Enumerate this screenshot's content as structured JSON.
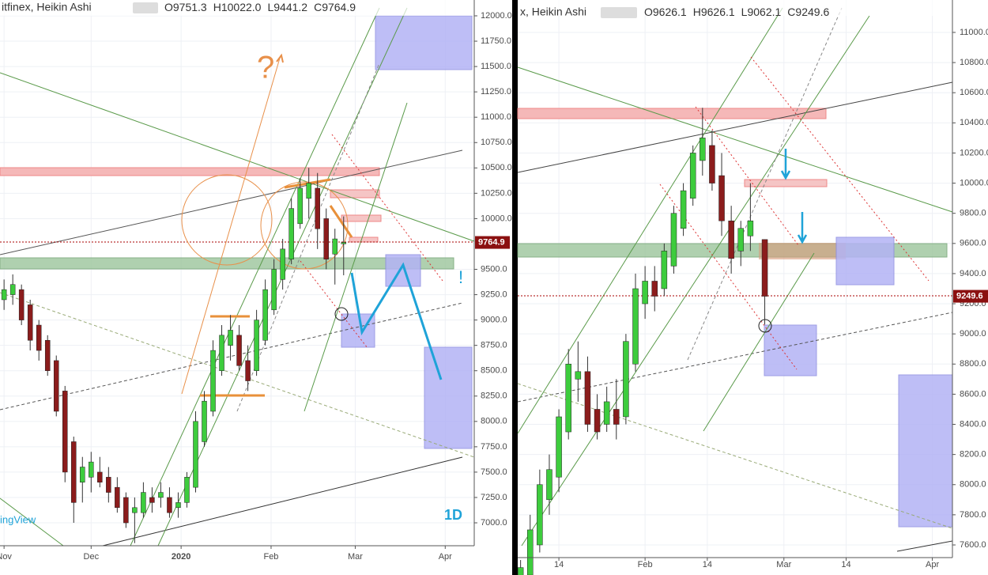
{
  "chart_data": [
    {
      "type": "candlestick",
      "title": "itfinex, Heikin Ashi",
      "ohlc_prefixes": [
        "O",
        "H",
        "L",
        "C"
      ],
      "ohlc_values": [
        9751.3,
        10022,
        9441.2,
        9764.9
      ],
      "ohlc_value_labels": [
        "9751.3",
        "10022.0",
        "9441.2",
        "9764.9"
      ],
      "ohlc_x": 117,
      "up_color": "#3dcc3d",
      "down_color": "#8b1c1c",
      "annotations": [
        "?",
        "!",
        "1D",
        "ingView"
      ],
      "xlim": [
        -1.4,
        162
      ],
      "xticks": [
        {
          "value": 0,
          "label": "Nov"
        },
        {
          "value": 30,
          "label": "Dec"
        },
        {
          "value": 61,
          "label": "2020"
        },
        {
          "value": 92,
          "label": "Feb"
        },
        {
          "value": 121,
          "label": "Mar"
        },
        {
          "value": 152,
          "label": "Apr"
        }
      ],
      "ylim": [
        6774,
        12156
      ],
      "yticks": [
        {
          "value": 7000,
          "label": "7000.0"
        },
        {
          "value": 7250,
          "label": "7250.0"
        },
        {
          "value": 7500,
          "label": "7500.0"
        },
        {
          "value": 7750,
          "label": "7750.0"
        },
        {
          "value": 8000,
          "label": "8000.0"
        },
        {
          "value": 8250,
          "label": "8250.0"
        },
        {
          "value": 8500,
          "label": "8500.0"
        },
        {
          "value": 8750,
          "label": "8750.0"
        },
        {
          "value": 9000,
          "label": "9000.0"
        },
        {
          "value": 9250,
          "label": "9250.0"
        },
        {
          "value": 9500,
          "label": "9500.0"
        },
        {
          "value": 10000,
          "label": "10000.0"
        },
        {
          "value": 10250,
          "label": "10250.0"
        },
        {
          "value": 10500,
          "label": "10500.0"
        },
        {
          "value": 10750,
          "label": "10750.0"
        },
        {
          "value": 11000,
          "label": "11000.0"
        },
        {
          "value": 11250,
          "label": "11250.0"
        },
        {
          "value": 11500,
          "label": "11500.0"
        },
        {
          "value": 11750,
          "label": "11750.0"
        },
        {
          "value": 12000,
          "label": "12000.0"
        }
      ],
      "grid": true,
      "candles": [
        [
          0,
          9200,
          9400,
          9100,
          9300
        ],
        [
          3,
          9250,
          9450,
          9150,
          9350
        ],
        [
          6,
          9300,
          9350,
          8950,
          9000
        ],
        [
          9,
          9150,
          9200,
          8700,
          8800
        ],
        [
          12,
          8950,
          9000,
          8600,
          8700
        ],
        [
          15,
          8800,
          8850,
          8450,
          8500
        ],
        [
          18,
          8600,
          8650,
          8050,
          8100
        ],
        [
          21,
          8300,
          8350,
          7400,
          7500
        ],
        [
          24,
          7800,
          7850,
          7000,
          7200
        ],
        [
          27,
          7400,
          7650,
          7200,
          7550
        ],
        [
          30,
          7450,
          7700,
          7300,
          7600
        ],
        [
          33,
          7500,
          7650,
          7350,
          7400
        ],
        [
          36,
          7450,
          7550,
          7200,
          7300
        ],
        [
          39,
          7350,
          7450,
          7100,
          7150
        ],
        [
          42,
          7250,
          7300,
          6950,
          7000
        ],
        [
          45,
          7100,
          7250,
          6800,
          7150
        ],
        [
          48,
          7100,
          7400,
          7050,
          7300
        ],
        [
          51,
          7250,
          7350,
          7100,
          7200
        ],
        [
          54,
          7250,
          7400,
          7150,
          7300
        ],
        [
          57,
          7250,
          7350,
          7050,
          7100
        ],
        [
          60,
          7150,
          7300,
          7050,
          7200
        ],
        [
          63,
          7200,
          7500,
          7150,
          7450
        ],
        [
          66,
          7350,
          8100,
          7300,
          8000
        ],
        [
          69,
          7800,
          8300,
          7750,
          8200
        ],
        [
          72,
          8100,
          8800,
          8050,
          8700
        ],
        [
          75,
          8500,
          8950,
          8450,
          8850
        ],
        [
          78,
          8750,
          9050,
          8600,
          8900
        ],
        [
          81,
          8850,
          8950,
          8500,
          8550
        ],
        [
          84,
          8600,
          8750,
          8300,
          8400
        ],
        [
          87,
          8500,
          9100,
          8450,
          9000
        ],
        [
          90,
          8800,
          9400,
          8750,
          9300
        ],
        [
          93,
          9100,
          9600,
          9050,
          9500
        ],
        [
          96,
          9400,
          9800,
          9300,
          9700
        ],
        [
          99,
          9600,
          10200,
          9550,
          10100
        ],
        [
          102,
          9950,
          10400,
          9900,
          10300
        ],
        [
          105,
          10200,
          10500,
          10000,
          10350
        ],
        [
          108,
          10300,
          10450,
          9700,
          9900
        ],
        [
          111,
          10000,
          10100,
          9500,
          9600
        ],
        [
          114,
          9650,
          9900,
          9350,
          9800
        ]
      ]
    },
    {
      "type": "candlestick",
      "title": "x, Heikin Ashi",
      "ohlc_prefixes": [
        "O",
        "H",
        "L",
        "C"
      ],
      "ohlc_values": [
        9626.1,
        9626.1,
        9062.1,
        9249.6
      ],
      "ohlc_value_labels": [
        "9626.1",
        "9626.1",
        "9062.1",
        "9249.6"
      ],
      "ohlc_x": 56,
      "up_color": "#3dcc3d",
      "down_color": "#8b1c1c",
      "xlim": [
        4.4,
        95.2
      ],
      "xticks": [
        {
          "value": 13,
          "label": "14"
        },
        {
          "value": 31,
          "label": "Feb"
        },
        {
          "value": 44,
          "label": "14"
        },
        {
          "value": 60,
          "label": "Mar"
        },
        {
          "value": 73,
          "label": "14"
        },
        {
          "value": 91,
          "label": "Apr"
        }
      ],
      "ylim": [
        7516,
        11215
      ],
      "yticks": [
        {
          "value": 7600,
          "label": "7600.0"
        },
        {
          "value": 7800,
          "label": "7800.0"
        },
        {
          "value": 8000,
          "label": "8000.0"
        },
        {
          "value": 8200,
          "label": "8200.0"
        },
        {
          "value": 8400,
          "label": "8400.0"
        },
        {
          "value": 8600,
          "label": "8600.0"
        },
        {
          "value": 8800,
          "label": "8800.0"
        },
        {
          "value": 9000,
          "label": "9000.0"
        },
        {
          "value": 9200,
          "label": "9200.0"
        },
        {
          "value": 9400,
          "label": "9400.0"
        },
        {
          "value": 9600,
          "label": "9600.0"
        },
        {
          "value": 9800,
          "label": "9800.0"
        },
        {
          "value": 10000,
          "label": "10000.0"
        },
        {
          "value": 10200,
          "label": "10200.0"
        },
        {
          "value": 10400,
          "label": "10400.0"
        },
        {
          "value": 10600,
          "label": "10600.0"
        },
        {
          "value": 10800,
          "label": "10800.0"
        },
        {
          "value": 11000,
          "label": "11000.0"
        }
      ],
      "grid": true,
      "candles": [
        [
          5,
          7350,
          7500,
          7300,
          7450
        ],
        [
          7,
          7400,
          7800,
          7350,
          7700
        ],
        [
          9,
          7600,
          8100,
          7550,
          8000
        ],
        [
          11,
          7900,
          8200,
          7800,
          8100
        ],
        [
          13,
          8050,
          8500,
          7950,
          8450
        ],
        [
          15,
          8350,
          8900,
          8300,
          8800
        ],
        [
          17,
          8700,
          8950,
          8550,
          8750
        ],
        [
          19,
          8750,
          8850,
          8350,
          8400
        ],
        [
          21,
          8500,
          8600,
          8300,
          8350
        ],
        [
          23,
          8400,
          8650,
          8350,
          8550
        ],
        [
          25,
          8500,
          8700,
          8300,
          8400
        ],
        [
          27,
          8450,
          9000,
          8400,
          8950
        ],
        [
          29,
          8800,
          9400,
          8750,
          9300
        ],
        [
          31,
          9200,
          9450,
          9100,
          9350
        ],
        [
          33,
          9350,
          9450,
          9150,
          9250
        ],
        [
          35,
          9300,
          9600,
          9250,
          9550
        ],
        [
          37,
          9450,
          9850,
          9400,
          9800
        ],
        [
          39,
          9700,
          10000,
          9650,
          9950
        ],
        [
          41,
          9900,
          10250,
          9850,
          10200
        ],
        [
          43,
          10150,
          10500,
          10050,
          10300
        ],
        [
          45,
          10250,
          10350,
          9950,
          10000
        ],
        [
          47,
          10050,
          10200,
          9650,
          9750
        ],
        [
          49,
          9750,
          9850,
          9400,
          9500
        ],
        [
          51,
          9550,
          9750,
          9450,
          9700
        ],
        [
          53,
          9650,
          10000,
          9550,
          9750
        ]
      ]
    }
  ]
}
